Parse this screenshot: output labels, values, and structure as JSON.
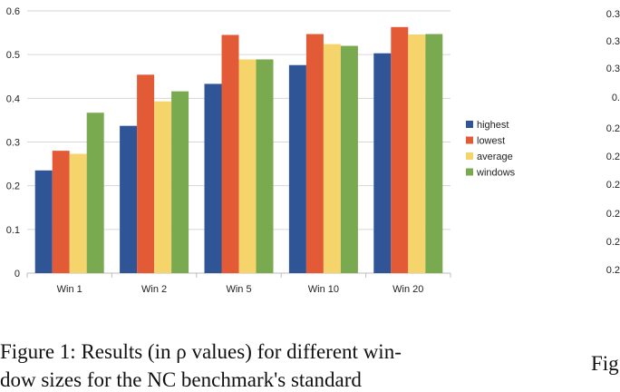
{
  "chart_data": {
    "type": "bar",
    "categories": [
      "Win 1",
      "Win 2",
      "Win 5",
      "Win 10",
      "Win 20"
    ],
    "series": [
      {
        "name": "highest",
        "color": "#2f5597",
        "values": [
          0.235,
          0.337,
          0.433,
          0.476,
          0.503
        ]
      },
      {
        "name": "lowest",
        "color": "#e35a36",
        "values": [
          0.28,
          0.454,
          0.545,
          0.547,
          0.563
        ]
      },
      {
        "name": "average",
        "color": "#f6d46c",
        "values": [
          0.273,
          0.393,
          0.489,
          0.524,
          0.546
        ]
      },
      {
        "name": "windows",
        "color": "#7aaa4f",
        "values": [
          0.367,
          0.416,
          0.489,
          0.52,
          0.547
        ]
      }
    ],
    "ylim": [
      0,
      0.6
    ],
    "yticks": [
      "0",
      "0.1",
      "0.2",
      "0.3",
      "0.4",
      "0.5",
      "0.6"
    ],
    "grid": true,
    "legend_position": "right"
  },
  "right_axis_fragment": {
    "tick_labels": [
      "0.3",
      "0.3",
      "0.3",
      "0.",
      "0.2",
      "0.2",
      "0.2",
      "0.2",
      "0.2",
      "0.2"
    ]
  },
  "captions": {
    "left_line1": "Figure 1: Results (in ρ values) for different win-",
    "left_line2": "dow sizes for the NC benchmark's standard",
    "right": "Fig"
  }
}
